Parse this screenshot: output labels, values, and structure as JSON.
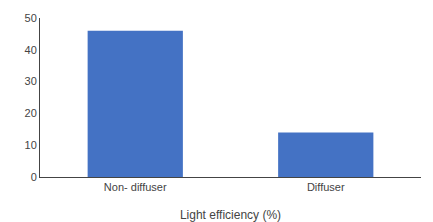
{
  "chart_data": {
    "type": "bar",
    "categories": [
      "Non- diffuser",
      "Diffuser"
    ],
    "values": [
      46,
      14
    ],
    "color": "#4472C4",
    "xlabel": "Light efficiency (%)",
    "ylim": [
      0,
      50
    ],
    "yticks": [
      0,
      10,
      20,
      30,
      40,
      50
    ],
    "grid": false
  }
}
